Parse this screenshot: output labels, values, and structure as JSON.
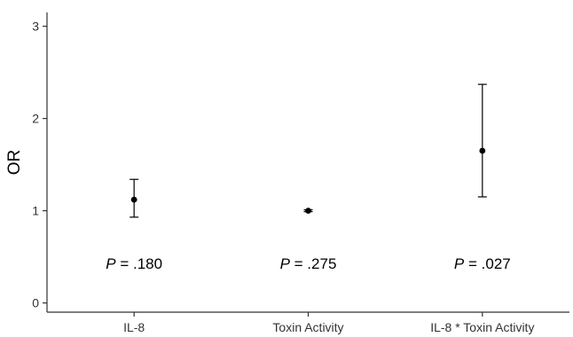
{
  "chart_data": {
    "type": "scatter",
    "title": "",
    "xlabel": "",
    "ylabel": "OR",
    "ylim": [
      -0.1,
      3.15
    ],
    "yticks": [
      0,
      1,
      2,
      3
    ],
    "grid": false,
    "categories": [
      "IL-8",
      "Toxin Activity",
      "IL-8 * Toxin Activity"
    ],
    "points": [
      {
        "category": "IL-8",
        "or": 1.12,
        "ci_low": 0.93,
        "ci_high": 1.34
      },
      {
        "category": "Toxin Activity",
        "or": 1.0,
        "ci_low": 0.99,
        "ci_high": 1.01
      },
      {
        "category": "IL-8 * Toxin Activity",
        "or": 1.65,
        "ci_low": 1.15,
        "ci_high": 2.37
      }
    ],
    "annotations": [
      {
        "prefix": "P",
        "text": " = .180"
      },
      {
        "prefix": "P",
        "text": " = .275"
      },
      {
        "prefix": "P",
        "text": " = .027"
      }
    ],
    "annotation_y": 0.43,
    "colors": {
      "axis": "#333333",
      "marker": "#000000",
      "errorbar": "#000000"
    }
  }
}
